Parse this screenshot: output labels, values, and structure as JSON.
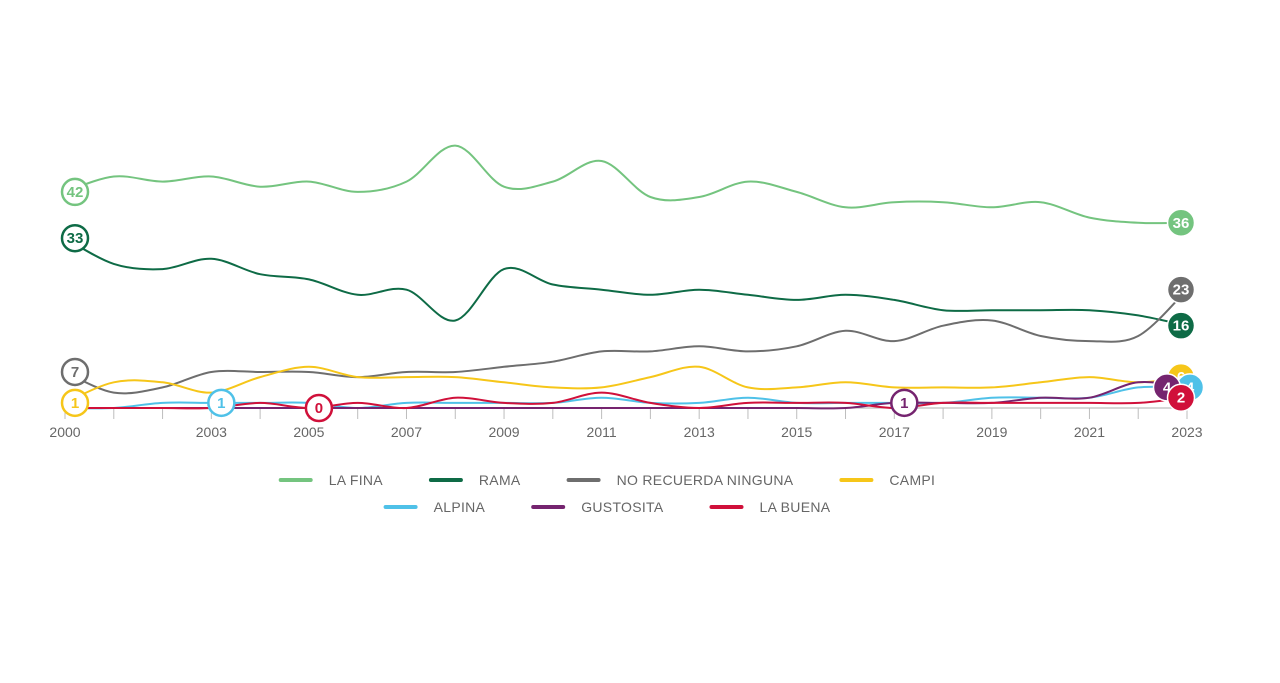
{
  "chart_data": {
    "type": "line",
    "x": [
      2000,
      2001,
      2002,
      2003,
      2004,
      2005,
      2006,
      2007,
      2008,
      2009,
      2010,
      2011,
      2012,
      2013,
      2014,
      2015,
      2016,
      2017,
      2018,
      2019,
      2020,
      2021,
      2022,
      2023
    ],
    "x_tick_labels": [
      "2000",
      "2003",
      "2005",
      "2007",
      "2009",
      "2011",
      "2013",
      "2015",
      "2017",
      "2019",
      "2021",
      "2023"
    ],
    "ylim": [
      0,
      55
    ],
    "grid": false,
    "legend_position": "bottom",
    "series": [
      {
        "name": "LA FINA",
        "color": "#74c47f",
        "values": [
          42,
          45,
          44,
          45,
          43,
          44,
          42,
          44,
          51,
          43,
          44,
          48,
          41,
          41,
          44,
          42,
          39,
          40,
          40,
          39,
          40,
          37,
          36,
          36
        ],
        "point_labels": [
          {
            "x": 2000,
            "text": "42"
          },
          {
            "x": 2023,
            "text": "36"
          }
        ]
      },
      {
        "name": "RAMA",
        "color": "#0e6b46",
        "values": [
          33,
          28,
          27,
          29,
          26,
          25,
          22,
          23,
          17,
          27,
          24,
          23,
          22,
          23,
          22,
          21,
          22,
          21,
          19,
          19,
          19,
          19,
          18,
          16
        ],
        "point_labels": [
          {
            "x": 2000,
            "text": "33"
          },
          {
            "x": 2023,
            "text": "16"
          }
        ]
      },
      {
        "name": "NO RECUERDA NINGUNA",
        "color": "#6e6e6e",
        "values": [
          7,
          3,
          4,
          7,
          7,
          7,
          6,
          7,
          7,
          8,
          9,
          11,
          11,
          12,
          11,
          12,
          15,
          13,
          16,
          17,
          14,
          13,
          14,
          23
        ],
        "point_labels": [
          {
            "x": 2000,
            "text": "7"
          },
          {
            "x": 2023,
            "text": "23"
          }
        ]
      },
      {
        "name": "CAMPI",
        "color": "#f6c619",
        "values": [
          1,
          5,
          5,
          3,
          6,
          8,
          6,
          6,
          6,
          5,
          4,
          4,
          6,
          8,
          4,
          4,
          5,
          4,
          4,
          4,
          5,
          6,
          5,
          6
        ],
        "point_labels": [
          {
            "x": 2000,
            "text": "1"
          },
          {
            "x": 2023,
            "text": "6"
          }
        ]
      },
      {
        "name": "ALPINA",
        "color": "#4fc1e8",
        "values": [
          0,
          0,
          1,
          1,
          1,
          1,
          0,
          1,
          1,
          1,
          1,
          2,
          1,
          1,
          2,
          1,
          1,
          1,
          1,
          2,
          2,
          2,
          4,
          4
        ],
        "point_labels": [
          {
            "x": 2003,
            "text": "1"
          },
          {
            "x": 2023,
            "text": "4"
          }
        ]
      },
      {
        "name": "GUSTOSITA",
        "color": "#75246f",
        "values": [
          0,
          0,
          0,
          0,
          0,
          0,
          0,
          0,
          0,
          0,
          0,
          0,
          0,
          0,
          0,
          0,
          0,
          1,
          1,
          1,
          2,
          2,
          5,
          4
        ],
        "point_labels": [
          {
            "x": 2017,
            "text": "1"
          },
          {
            "x": 2023,
            "text": "4"
          }
        ]
      },
      {
        "name": "LA BUENA",
        "color": "#d0103a",
        "values": [
          0,
          0,
          0,
          0,
          1,
          0,
          1,
          0,
          2,
          1,
          1,
          3,
          1,
          0,
          1,
          1,
          1,
          0,
          1,
          1,
          1,
          1,
          1,
          2
        ],
        "point_labels": [
          {
            "x": 2005,
            "text": "0"
          },
          {
            "x": 2023,
            "text": "2"
          }
        ]
      }
    ]
  }
}
